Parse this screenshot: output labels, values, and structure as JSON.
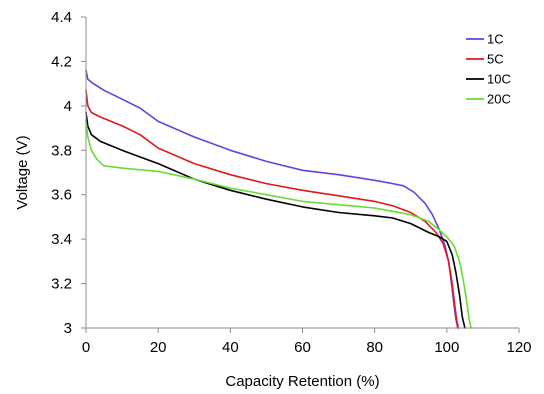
{
  "chart_data": {
    "type": "line",
    "title": "",
    "xlabel": "Capacity Retention (%)",
    "ylabel": "Voltage (V)",
    "xlim": [
      0,
      120
    ],
    "ylim": [
      3,
      4.4
    ],
    "xticks": [
      0,
      20,
      40,
      60,
      80,
      100,
      120
    ],
    "yticks": [
      3,
      3.2,
      3.4,
      3.6,
      3.8,
      4,
      4.2,
      4.4
    ],
    "xtick_labels": [
      "0",
      "20",
      "40",
      "60",
      "80",
      "100",
      "120"
    ],
    "ytick_labels": [
      "3",
      "3.2",
      "3.4",
      "3.6",
      "3.8",
      "4",
      "4.2",
      "4.4"
    ],
    "grid": false,
    "legend_position": "top-right",
    "series": [
      {
        "name": "1C",
        "color": "#6a3fe0",
        "x": [
          0,
          0.5,
          2,
          5,
          10,
          15,
          20,
          30,
          40,
          50,
          60,
          70,
          80,
          85,
          88,
          91,
          94,
          96,
          98,
          99.5,
          100.5,
          101.3,
          102,
          102.5,
          103
        ],
        "y": [
          4.16,
          4.12,
          4.1,
          4.07,
          4.03,
          3.99,
          3.93,
          3.86,
          3.8,
          3.75,
          3.71,
          3.69,
          3.665,
          3.65,
          3.64,
          3.61,
          3.56,
          3.51,
          3.44,
          3.37,
          3.3,
          3.2,
          3.1,
          3.04,
          3.0
        ]
      },
      {
        "name": "5C",
        "color": "#e0181e",
        "x": [
          0,
          0.5,
          1.5,
          4,
          10,
          15,
          20,
          30,
          40,
          50,
          60,
          70,
          80,
          85,
          90,
          94,
          97,
          99,
          100.5,
          101.5,
          102.2,
          102.8,
          103.2
        ],
        "y": [
          4.07,
          4.0,
          3.97,
          3.95,
          3.91,
          3.87,
          3.81,
          3.74,
          3.69,
          3.65,
          3.62,
          3.595,
          3.57,
          3.55,
          3.52,
          3.48,
          3.43,
          3.38,
          3.3,
          3.2,
          3.1,
          3.03,
          3.0
        ]
      },
      {
        "name": "10C",
        "color": "#000000",
        "x": [
          0,
          0.5,
          1.5,
          4,
          10,
          15,
          20,
          30,
          40,
          50,
          60,
          70,
          80,
          85,
          90,
          95,
          98,
          100,
          101.5,
          102.5,
          103.5,
          104.3,
          105
        ],
        "y": [
          3.97,
          3.91,
          3.87,
          3.84,
          3.8,
          3.77,
          3.74,
          3.67,
          3.62,
          3.58,
          3.545,
          3.52,
          3.505,
          3.495,
          3.47,
          3.43,
          3.41,
          3.39,
          3.33,
          3.25,
          3.15,
          3.05,
          3.0
        ]
      },
      {
        "name": "20C",
        "color": "#66dd33",
        "x": [
          0,
          0.5,
          1.5,
          3,
          5,
          10,
          20,
          30,
          40,
          50,
          60,
          70,
          80,
          90,
          95,
          98,
          100,
          102,
          103.5,
          104.5,
          105.5,
          106.2,
          106.7
        ],
        "y": [
          3.93,
          3.86,
          3.8,
          3.76,
          3.73,
          3.72,
          3.705,
          3.67,
          3.63,
          3.6,
          3.57,
          3.555,
          3.54,
          3.51,
          3.48,
          3.44,
          3.41,
          3.37,
          3.3,
          3.22,
          3.12,
          3.04,
          3.0
        ]
      }
    ]
  }
}
